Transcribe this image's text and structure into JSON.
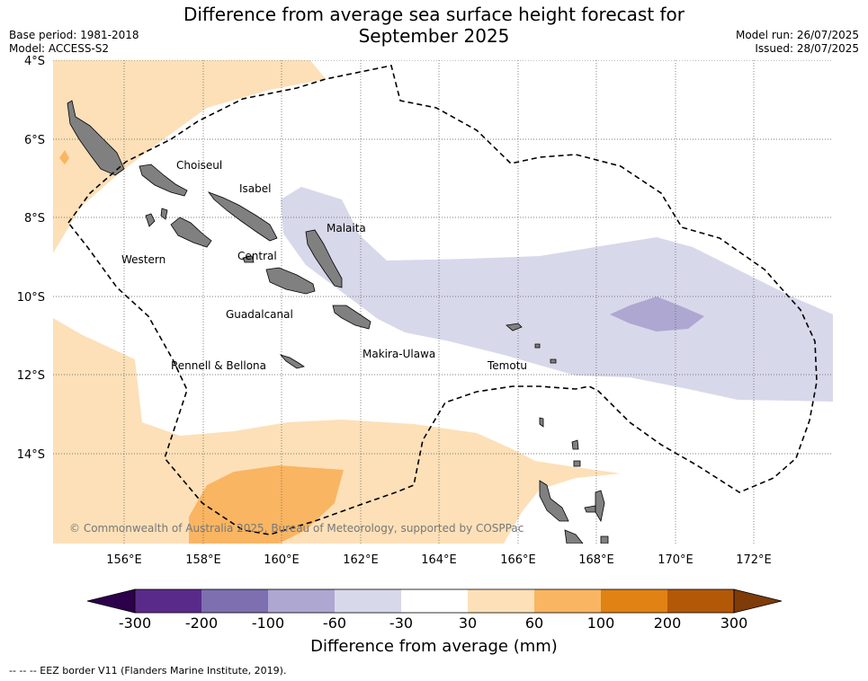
{
  "title_line1": "Difference from average sea surface height forecast for",
  "title_line2": "September 2025",
  "meta": {
    "base_period": "Base period: 1981-2018",
    "model": "Model: ACCESS-S2",
    "model_run": "Model run: 26/07/2025",
    "issued": "Issued: 28/07/2025"
  },
  "axes": {
    "lat_ticks": [
      "4°S",
      "6°S",
      "8°S",
      "10°S",
      "12°S",
      "14°S"
    ],
    "lon_ticks": [
      "156°E",
      "158°E",
      "160°E",
      "162°E",
      "164°E",
      "166°E",
      "168°E",
      "170°E",
      "172°E"
    ]
  },
  "regions": [
    {
      "name": "Choiseul"
    },
    {
      "name": "Isabel"
    },
    {
      "name": "Malaita"
    },
    {
      "name": "Western"
    },
    {
      "name": "Central"
    },
    {
      "name": "Guadalcanal"
    },
    {
      "name": "Makira-Ulawa"
    },
    {
      "name": "Rennell & Bellona"
    },
    {
      "name": "Temotu"
    }
  ],
  "copyright": "© Commonwealth of Australia 2025, Bureau of Meteorology, supported by COSPPac",
  "colorbar": {
    "label": "Difference from average (mm)",
    "ticks": [
      "-300",
      "-200",
      "-100",
      "-60",
      "-30",
      "30",
      "60",
      "100",
      "200",
      "300"
    ],
    "colors": [
      "#5a2a8a",
      "#7e6fb0",
      "#ada7d1",
      "#d8d8eb",
      "#ffffff",
      "#fde0b8",
      "#f9b562",
      "#e08214",
      "#b35806"
    ],
    "under_color": "#2d004b",
    "over_color": "#7f3b08"
  },
  "colors": {
    "land": "#808080",
    "light_blue": "#d8d8eb",
    "mid_purple": "#ada7d1",
    "light_orange": "#fde0b8",
    "mid_orange": "#f9b562"
  },
  "footer_note": "--  --  -- EEZ border V11 (Flanders Marine Institute, 2019)."
}
